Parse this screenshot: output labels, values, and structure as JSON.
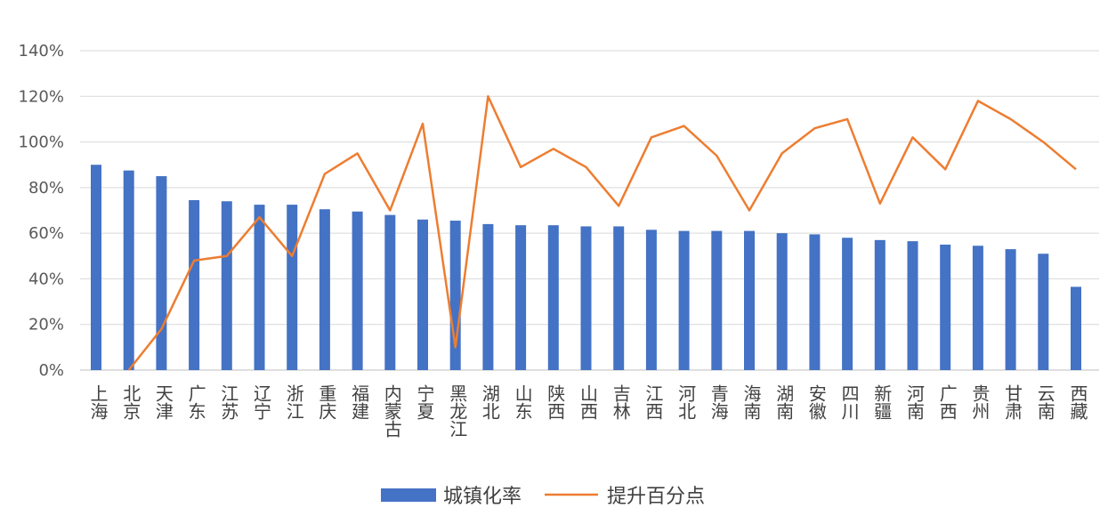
{
  "chart_data": {
    "type": "bar",
    "categories": [
      "上海",
      "北京",
      "天津",
      "广东",
      "江苏",
      "辽宁",
      "浙江",
      "重庆",
      "福建",
      "内蒙古",
      "宁夏",
      "黑龙江",
      "湖北",
      "山东",
      "陕西",
      "山西",
      "吉林",
      "江西",
      "河北",
      "青海",
      "海南",
      "湖南",
      "安徽",
      "四川",
      "新疆",
      "河南",
      "广西",
      "贵州",
      "甘肃",
      "云南",
      "西藏"
    ],
    "series": [
      {
        "name": "城镇化率",
        "type": "bar",
        "color": "#4472C4",
        "values": [
          90,
          87.5,
          85,
          74.5,
          74,
          72.5,
          72.5,
          70.5,
          69.5,
          68,
          66,
          65.5,
          64,
          63.5,
          63.5,
          63,
          63,
          61.5,
          61,
          61,
          61,
          60,
          59.5,
          58,
          57,
          56.5,
          55,
          54.5,
          53,
          51,
          36.5
        ]
      },
      {
        "name": "提升百分点",
        "type": "line",
        "color": "#ED7D31",
        "values": [
          null,
          0,
          18,
          48,
          50,
          67,
          50,
          86,
          95,
          70,
          108,
          10,
          120,
          89,
          97,
          89,
          72,
          102,
          107,
          94,
          70,
          95,
          106,
          110,
          73,
          102,
          88,
          118,
          110,
          100,
          88
        ]
      }
    ],
    "y_ticks": [
      "0%",
      "20%",
      "40%",
      "60%",
      "80%",
      "100%",
      "120%",
      "140%"
    ],
    "ylim": [
      0,
      140
    ],
    "legend_position": "bottom",
    "grid": true
  }
}
